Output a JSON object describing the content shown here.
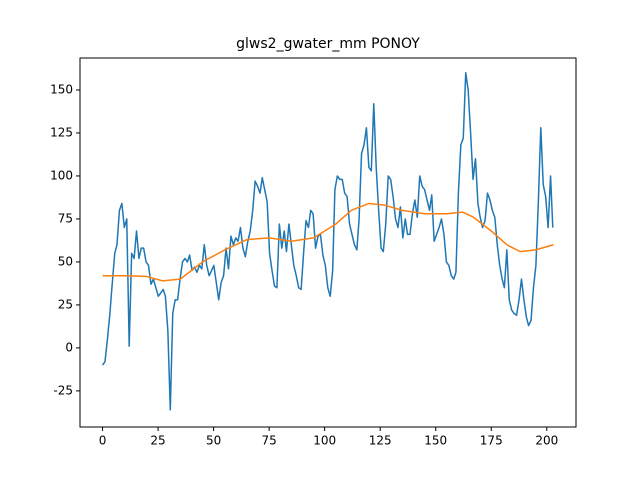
{
  "chart_data": {
    "type": "line",
    "title": "glws2_gwater_mm PONOY",
    "xlim": [
      -10.15,
      213.15
    ],
    "ylim": [
      -46,
      168.6
    ],
    "xticks": [
      0,
      25,
      50,
      75,
      100,
      125,
      150,
      175,
      200
    ],
    "yticks": [
      -25,
      0,
      25,
      50,
      75,
      100,
      125,
      150
    ],
    "grid": false,
    "series": [
      {
        "color": "#1f77b4",
        "x": [
          0,
          1.1,
          2.2,
          3.3,
          4.4,
          5.5,
          6.5,
          7.6,
          8.7,
          9.8,
          10.9,
          12,
          13.1,
          14.2,
          15.3,
          16.4,
          17.4,
          18.5,
          19.6,
          20.7,
          21.8,
          22.9,
          24,
          25.1,
          26.2,
          27.3,
          28.3,
          29.4,
          30.5,
          31.6,
          32.7,
          33.8,
          34.9,
          36,
          37.1,
          38.2,
          39.2,
          40.3,
          41.4,
          42.5,
          43.6,
          44.7,
          45.8,
          46.9,
          48,
          49.1,
          50.1,
          51.2,
          52.3,
          53.4,
          54.5,
          55.6,
          56.7,
          57.8,
          58.9,
          60,
          61,
          62.1,
          63.2,
          64.3,
          65.4,
          66.5,
          67.6,
          68.7,
          69.8,
          70.9,
          71.9,
          73,
          74.1,
          75.2,
          76.3,
          77.4,
          78.5,
          79.6,
          80.7,
          81.8,
          82.8,
          83.9,
          85,
          86.1,
          87.2,
          88.3,
          89.4,
          90.5,
          91.6,
          92.7,
          93.7,
          94.8,
          95.9,
          97,
          98.1,
          99.2,
          100.3,
          101.4,
          102.5,
          103.6,
          104.6,
          105.7,
          106.8,
          107.9,
          109,
          110.1,
          111.2,
          112.3,
          113.4,
          114.5,
          115.5,
          116.6,
          117.7,
          118.8,
          119.9,
          121,
          122.1,
          123.2,
          124.3,
          125.4,
          126.4,
          127.5,
          128.6,
          129.7,
          130.8,
          131.9,
          133,
          134.1,
          135.2,
          136.3,
          137.3,
          138.4,
          139.5,
          140.6,
          141.7,
          142.8,
          143.9,
          145,
          146.1,
          147.2,
          148.2,
          149.3,
          150.4,
          151.5,
          152.6,
          153.7,
          154.8,
          155.9,
          157,
          158.1,
          159.1,
          160.2,
          161.3,
          162.4,
          163.5,
          164.6,
          165.7,
          166.8,
          167.9,
          169,
          170,
          171.1,
          172.2,
          173.3,
          174.4,
          175.5,
          176.6,
          177.7,
          178.8,
          179.9,
          180.9,
          182,
          183.1,
          184.2,
          185.3,
          186.4,
          187.5,
          188.6,
          189.7,
          190.8,
          191.8,
          192.9,
          194,
          195.1,
          196.2,
          197.3,
          198.4,
          199.5,
          200.6,
          201.7,
          202.7
        ],
        "values": [
          -10,
          -8,
          5,
          20,
          38,
          55,
          60,
          80,
          84,
          70,
          75,
          1,
          55,
          52,
          68,
          52,
          58,
          58,
          50,
          48,
          37,
          40,
          35,
          30,
          32,
          34,
          30,
          10,
          -36,
          20,
          28,
          28,
          40,
          50,
          52,
          50,
          54,
          45,
          47,
          44,
          48,
          46,
          60,
          48,
          42,
          45,
          48,
          38,
          28,
          38,
          42,
          58,
          46,
          65,
          60,
          64,
          62,
          70,
          58,
          53,
          62,
          68,
          80,
          97,
          94,
          90,
          99,
          92,
          85,
          55,
          45,
          36,
          35,
          72,
          58,
          68,
          56,
          72,
          60,
          48,
          42,
          35,
          34,
          55,
          74,
          70,
          80,
          78,
          58,
          65,
          66,
          54,
          48,
          35,
          30,
          45,
          92,
          100,
          98,
          98,
          90,
          88,
          72,
          66,
          60,
          57,
          75,
          113,
          118,
          128,
          105,
          103,
          142,
          105,
          80,
          58,
          56,
          72,
          100,
          98,
          88,
          75,
          70,
          82,
          64,
          75,
          66,
          66,
          78,
          86,
          76,
          100,
          94,
          92,
          86,
          80,
          89,
          62,
          66,
          70,
          75,
          66,
          50,
          48,
          42,
          40,
          44,
          90,
          118,
          122,
          160,
          150,
          125,
          98,
          110,
          84,
          76,
          70,
          74,
          90,
          86,
          80,
          76,
          60,
          48,
          40,
          35,
          57,
          28,
          22,
          20,
          19,
          28,
          40,
          28,
          18,
          13,
          16,
          35,
          48,
          85,
          128,
          95,
          88,
          70,
          100,
          70
        ]
      },
      {
        "color": "#ff7f0e",
        "x": [
          0,
          10,
          20,
          27,
          35,
          45,
          55,
          65,
          75,
          85,
          95,
          105,
          112,
          120,
          127,
          135,
          145,
          155,
          162,
          167,
          175,
          182,
          188,
          195,
          203
        ],
        "values": [
          42,
          42,
          41.5,
          39,
          40,
          50,
          57,
          63,
          64,
          62,
          64,
          72,
          80,
          84,
          83,
          80,
          78,
          78,
          79,
          76,
          68,
          60,
          56,
          57,
          60
        ]
      }
    ]
  }
}
